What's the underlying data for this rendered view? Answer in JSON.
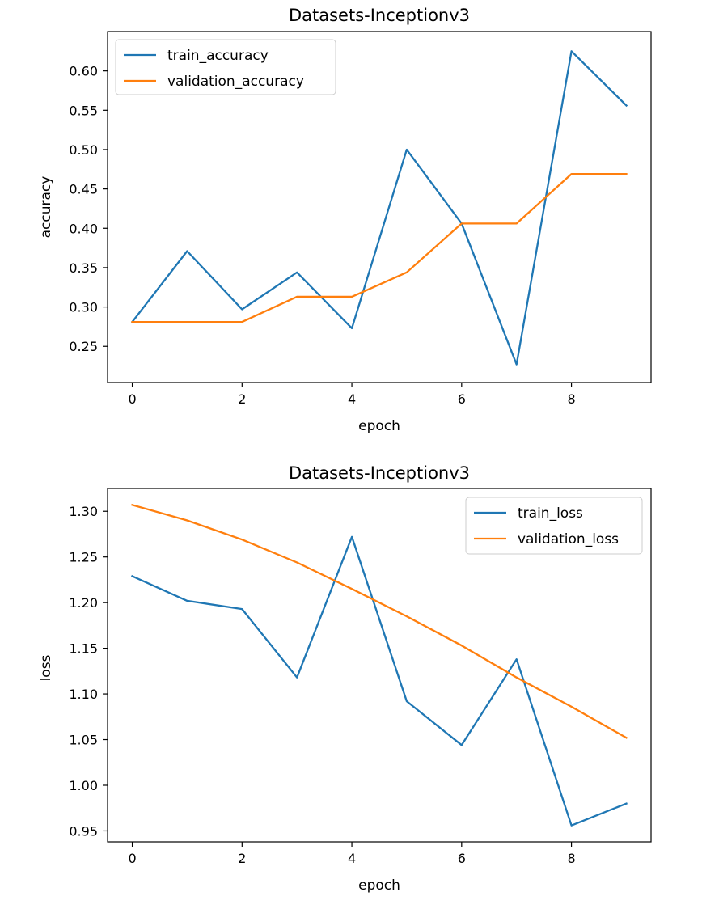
{
  "colors": {
    "train": "#1f77b4",
    "validation": "#ff7f0e"
  },
  "chart_data": [
    {
      "type": "line",
      "title": "Datasets-Inceptionv3",
      "xlabel": "epoch",
      "ylabel": "accuracy",
      "x": [
        0,
        1,
        2,
        3,
        4,
        5,
        6,
        7,
        8,
        9
      ],
      "xlim": [
        -0.45,
        9.45
      ],
      "ylim": [
        0.204,
        0.65
      ],
      "xticks": [
        0,
        2,
        4,
        6,
        8
      ],
      "xtick_labels": [
        "0",
        "2",
        "4",
        "6",
        "8"
      ],
      "yticks": [
        0.25,
        0.3,
        0.35,
        0.4,
        0.45,
        0.5,
        0.55,
        0.6
      ],
      "ytick_labels": [
        "0.25",
        "0.30",
        "0.35",
        "0.40",
        "0.45",
        "0.50",
        "0.55",
        "0.60"
      ],
      "legend_position": "upper-left",
      "grid": false,
      "series": [
        {
          "name": "train_accuracy",
          "color": "#1f77b4",
          "values": [
            0.281,
            0.371,
            0.297,
            0.344,
            0.273,
            0.5,
            0.406,
            0.227,
            0.625,
            0.556
          ]
        },
        {
          "name": "validation_accuracy",
          "color": "#ff7f0e",
          "values": [
            0.281,
            0.281,
            0.281,
            0.313,
            0.313,
            0.344,
            0.406,
            0.406,
            0.469,
            0.469
          ]
        }
      ]
    },
    {
      "type": "line",
      "title": "Datasets-Inceptionv3",
      "xlabel": "epoch",
      "ylabel": "loss",
      "x": [
        0,
        1,
        2,
        3,
        4,
        5,
        6,
        7,
        8,
        9
      ],
      "xlim": [
        -0.45,
        9.45
      ],
      "ylim": [
        0.938,
        1.325
      ],
      "xticks": [
        0,
        2,
        4,
        6,
        8
      ],
      "xtick_labels": [
        "0",
        "2",
        "4",
        "6",
        "8"
      ],
      "yticks": [
        0.95,
        1.0,
        1.05,
        1.1,
        1.15,
        1.2,
        1.25,
        1.3
      ],
      "ytick_labels": [
        "0.95",
        "1.00",
        "1.05",
        "1.10",
        "1.15",
        "1.20",
        "1.25",
        "1.30"
      ],
      "legend_position": "upper-right",
      "grid": false,
      "series": [
        {
          "name": "train_loss",
          "color": "#1f77b4",
          "values": [
            1.229,
            1.202,
            1.193,
            1.118,
            1.272,
            1.092,
            1.044,
            1.138,
            0.956,
            0.98
          ]
        },
        {
          "name": "validation_loss",
          "color": "#ff7f0e",
          "values": [
            1.307,
            1.29,
            1.269,
            1.244,
            1.215,
            1.185,
            1.153,
            1.118,
            1.086,
            1.052
          ]
        }
      ]
    }
  ]
}
